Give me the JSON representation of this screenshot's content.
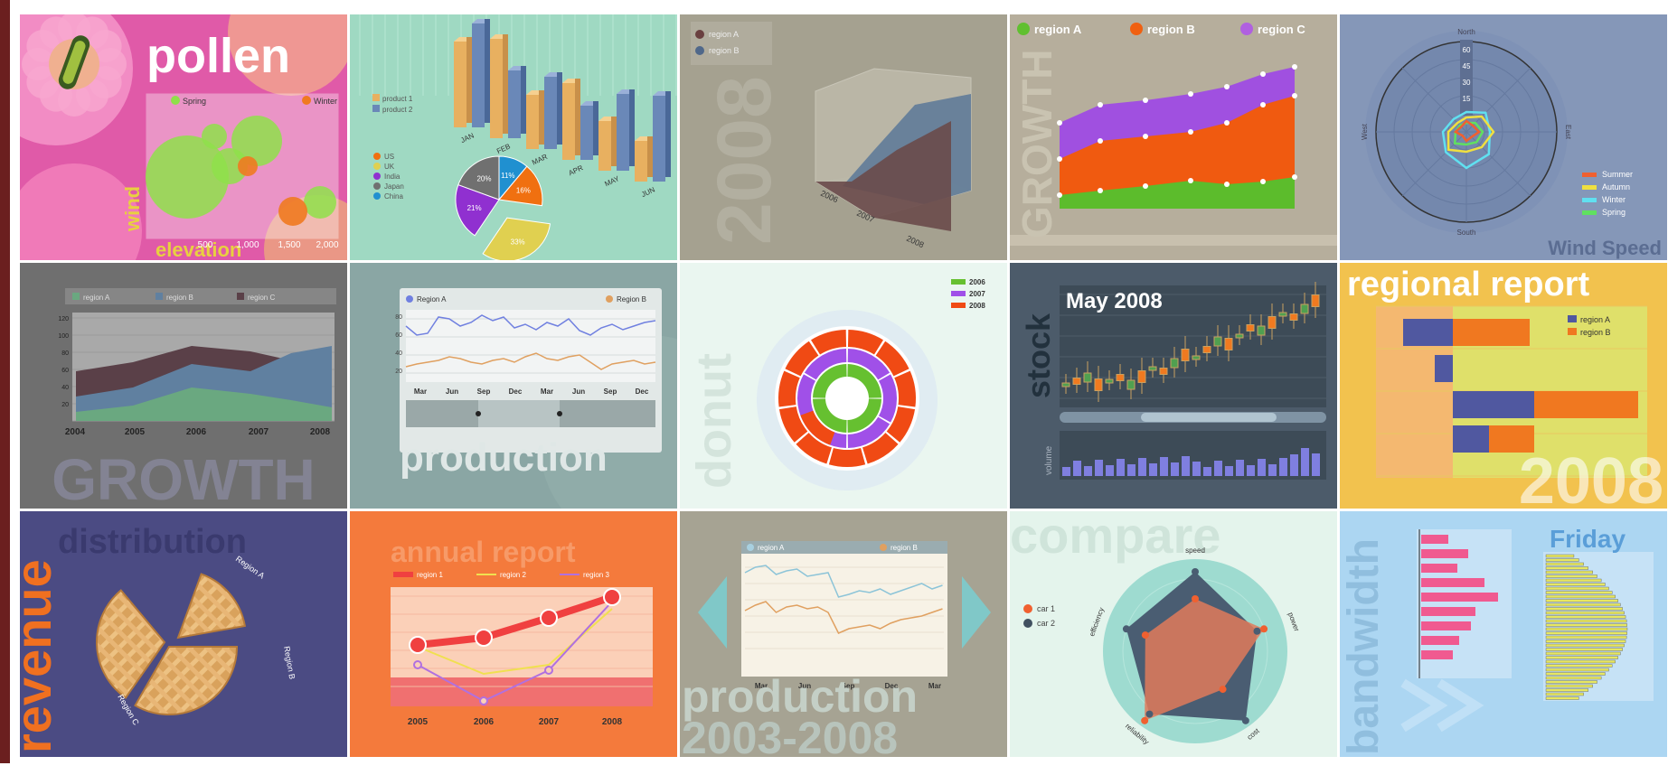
{
  "tiles": [
    {
      "title": "pollen",
      "labels": [
        "Spring",
        "Winter",
        "wind",
        "elevation",
        "500",
        "1,000",
        "1,500",
        "2,000"
      ]
    },
    {
      "labels": [
        "product 1",
        "product 2",
        "US",
        "UK",
        "India",
        "Japan",
        "China",
        "JAN",
        "FEB",
        "MAR",
        "APR",
        "MAY",
        "JUN",
        "11%",
        "16%",
        "20%",
        "21%",
        "33%"
      ]
    },
    {
      "labels": [
        "region A",
        "region B",
        "2008",
        "2006",
        "2007",
        "2008"
      ]
    },
    {
      "labels": [
        "region A",
        "region B",
        "region C",
        "GROWTH"
      ]
    },
    {
      "labels": [
        "Wind Speed",
        "North",
        "South",
        "East",
        "West",
        "Summer",
        "Autumn",
        "Winter",
        "Spring",
        "60",
        "45",
        "30",
        "15"
      ]
    },
    {
      "labels": [
        "region A",
        "region B",
        "region C",
        "2004",
        "2005",
        "2006",
        "2007",
        "2008",
        "20",
        "40",
        "60",
        "80",
        "100",
        "120",
        "GROWTH"
      ]
    },
    {
      "labels": [
        "Region A",
        "Region B",
        "Mar",
        "Jun",
        "Sep",
        "Dec",
        "Mar",
        "Jun",
        "Sep",
        "Dec",
        "20",
        "40",
        "60",
        "80",
        "production"
      ]
    },
    {
      "labels": [
        "donut",
        "2006",
        "2007",
        "2008"
      ]
    },
    {
      "labels": [
        "May 2008",
        "stock",
        "volume"
      ]
    },
    {
      "title": "regional report",
      "labels": [
        "region A",
        "region B",
        "2008"
      ]
    },
    {
      "labels": [
        "revenue",
        "distribution",
        "Region A",
        "Region B",
        "Region C"
      ]
    },
    {
      "title": "annual report",
      "labels": [
        "region 1",
        "region 2",
        "region 3",
        "2005",
        "2006",
        "2007",
        "2008"
      ]
    },
    {
      "labels": [
        "region A",
        "region B",
        "production",
        "2003-2008",
        "Mar",
        "Jun",
        "Sep",
        "Dec",
        "Mar"
      ]
    },
    {
      "title": "compare",
      "labels": [
        "car 1",
        "car 2",
        "speed",
        "power",
        "cost",
        "reliability",
        "efficiency"
      ]
    },
    {
      "title": "bandwidth",
      "labels": [
        "Friday"
      ]
    }
  ]
}
